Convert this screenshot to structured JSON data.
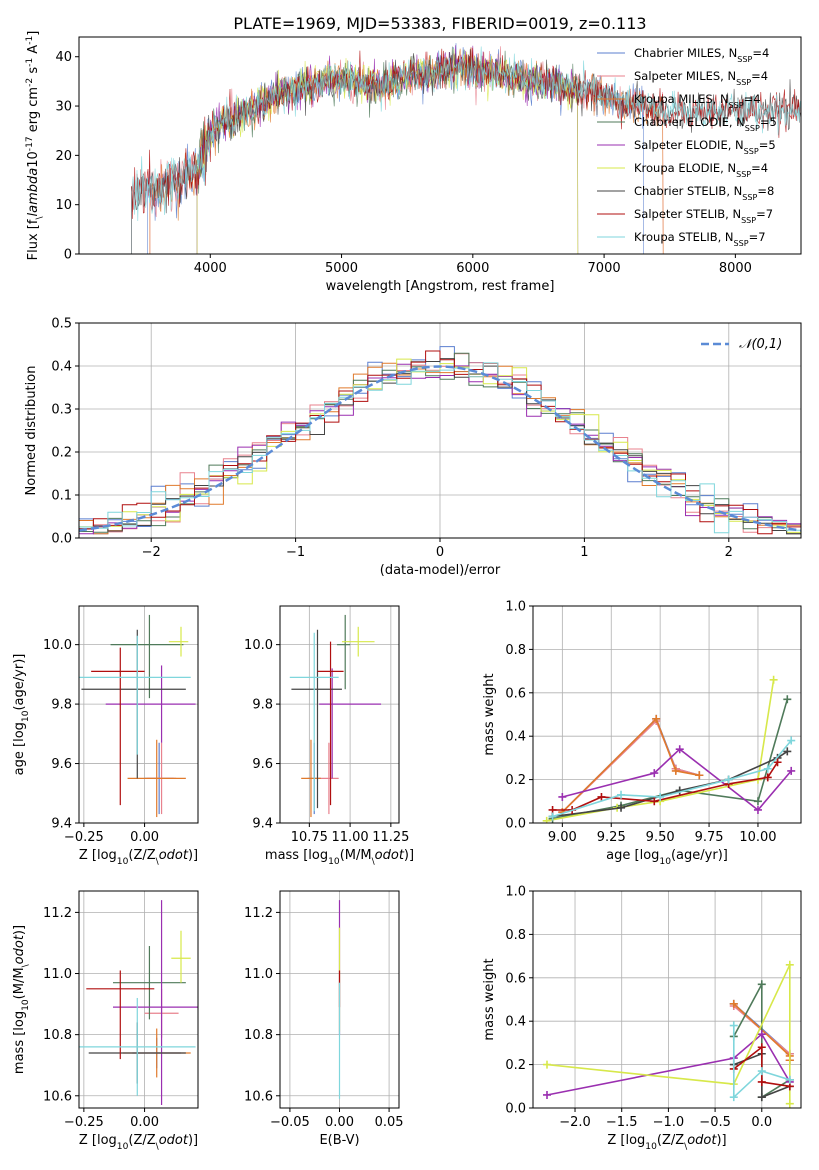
{
  "figure_title": "PLATE=1969, MJD=53383, FIBERID=0019, z=0.113",
  "colors": {
    "chabrier_miles": "#5b7fcf",
    "salpeter_miles": "#e8828e",
    "kroupa_miles": "#e07a2c",
    "chabrier_elodie": "#4f7a5a",
    "salpeter_elodie": "#9a2fb0",
    "kroupa_elodie": "#d7e84a",
    "chabrier_stelib": "#444444",
    "salpeter_stelib": "#b00f0f",
    "kroupa_stelib": "#7fd6dc",
    "normal_curve": "#5b8bd6",
    "grid": "#b0b0b0"
  },
  "chart_data": [
    {
      "id": "spectrum",
      "type": "line",
      "xlabel": "wavelength [Angstrom, rest frame]",
      "ylabel": "Flux [f$_\\lambda$10$^{-17}$ erg cm$^{-2}$ s$^{-1}$ A$^{-1}$]",
      "xlim": [
        3000,
        8500
      ],
      "ylim": [
        0,
        44
      ],
      "xticks": [
        4000,
        5000,
        6000,
        7000,
        8000
      ],
      "yticks": [
        0,
        10,
        20,
        30,
        40
      ],
      "grid": false,
      "legend_position": "top-right",
      "continuum": {
        "x": [
          3400,
          3600,
          3800,
          3900,
          4000,
          4100,
          4300,
          4500,
          4700,
          4900,
          5100,
          5300,
          5500,
          5700,
          5900,
          6100,
          6300,
          6500,
          6700,
          6900,
          7100,
          7300,
          7400
        ],
        "y": [
          12,
          13,
          16,
          17,
          24,
          27,
          29,
          32,
          34,
          35,
          35,
          34,
          36,
          37,
          38,
          37,
          36,
          35,
          34,
          33,
          31,
          30,
          29
        ]
      },
      "series": [
        {
          "name": "Chabrier MILES, N$_{SSP}$=4",
          "color_key": "chabrier_miles",
          "xrange": [
            3520,
            7300
          ]
        },
        {
          "name": "Salpeter MILES, N$_{SSP}$=4",
          "color_key": "salpeter_miles",
          "xrange": [
            3540,
            7450
          ]
        },
        {
          "name": "Kroupa MILES, N$_{SSP}$=4",
          "color_key": "kroupa_miles",
          "xrange": [
            3540,
            7450
          ]
        },
        {
          "name": "Chabrier ELODIE, N$_{SSP}$=5",
          "color_key": "chabrier_elodie",
          "xrange": [
            3900,
            6800
          ]
        },
        {
          "name": "Salpeter ELODIE, N$_{SSP}$=5",
          "color_key": "salpeter_elodie",
          "xrange": [
            3900,
            6800
          ]
        },
        {
          "name": "Kroupa ELODIE, N$_{SSP}$=4",
          "color_key": "kroupa_elodie",
          "xrange": [
            3900,
            6800
          ]
        },
        {
          "name": "Chabrier STELIB, N$_{SSP}$=8",
          "color_key": "chabrier_stelib",
          "xrange": [
            3400,
            8700
          ]
        },
        {
          "name": "Salpeter STELIB, N$_{SSP}$=7",
          "color_key": "salpeter_stelib",
          "xrange": [
            3400,
            8700
          ]
        },
        {
          "name": "Kroupa STELIB, N$_{SSP}$=7",
          "color_key": "kroupa_stelib",
          "xrange": [
            3400,
            8700
          ]
        }
      ]
    },
    {
      "id": "residuals",
      "type": "histogram",
      "xlabel": "(data-model)/error",
      "ylabel": "Normed distribution",
      "xlim": [
        -2.5,
        2.5
      ],
      "ylim": [
        0,
        0.5
      ],
      "xticks": [
        -2,
        -1,
        0,
        1,
        2
      ],
      "yticks": [
        0.0,
        0.1,
        0.2,
        0.3,
        0.4,
        0.5
      ],
      "grid": true,
      "legend_position": "top-right",
      "legend_label": "$\\mathcal{N}(0,1)$",
      "bin_width": 0.1
    },
    {
      "id": "age_vs_Z",
      "type": "errorbar",
      "xlabel": "Z [log$_{10}$(Z/Z$_\\odot$)]",
      "ylabel": "age  [log$_{10}$(age/yr)]",
      "xlim": [
        -0.27,
        0.22
      ],
      "ylim": [
        9.4,
        10.13
      ],
      "xticks": [
        -0.25,
        0.0
      ],
      "yticks": [
        9.4,
        9.6,
        9.8,
        10.0
      ],
      "grid": true,
      "points": [
        {
          "color_key": "chabrier_miles",
          "x": 0.06,
          "y": 9.55,
          "xerr": [
            0.06,
            0.06
          ],
          "yerr": [
            0.12,
            0.12
          ]
        },
        {
          "color_key": "salpeter_miles",
          "x": 0.07,
          "y": 9.55,
          "xerr": [
            0.06,
            0.06
          ],
          "yerr": [
            0.12,
            0.12
          ]
        },
        {
          "color_key": "kroupa_miles",
          "x": 0.05,
          "y": 9.55,
          "xerr": [
            0.12,
            0.12
          ],
          "yerr": [
            0.13,
            0.13
          ]
        },
        {
          "color_key": "chabrier_elodie",
          "x": 0.02,
          "y": 10.0,
          "xerr": [
            0.16,
            0.14
          ],
          "yerr": [
            0.18,
            0.1
          ]
        },
        {
          "color_key": "salpeter_elodie",
          "x": 0.07,
          "y": 9.8,
          "xerr": [
            0.23,
            0.14
          ],
          "yerr": [
            0.13,
            0.13
          ]
        },
        {
          "color_key": "kroupa_elodie",
          "x": 0.15,
          "y": 10.01,
          "xerr": [
            0.05,
            0.03
          ],
          "yerr": [
            0.05,
            0.05
          ]
        },
        {
          "color_key": "chabrier_stelib",
          "x": -0.03,
          "y": 9.85,
          "xerr": [
            0.23,
            0.2
          ],
          "yerr": [
            0.3,
            0.2
          ]
        },
        {
          "color_key": "salpeter_stelib",
          "x": -0.1,
          "y": 9.91,
          "xerr": [
            0.12,
            0.1
          ],
          "yerr": [
            0.45,
            0.08
          ]
        },
        {
          "color_key": "kroupa_stelib",
          "x": -0.03,
          "y": 9.89,
          "xerr": [
            0.25,
            0.22
          ],
          "yerr": [
            0.26,
            0.14
          ]
        }
      ]
    },
    {
      "id": "age_vs_mass",
      "type": "errorbar",
      "xlabel": "mass [log$_{10}$(M/M$_\\odot$)]",
      "ylabel": "",
      "xlim": [
        10.57,
        11.3
      ],
      "ylim": [
        9.4,
        10.13
      ],
      "xticks": [
        10.75,
        11.0,
        11.25
      ],
      "yticks": [
        9.4,
        9.6,
        9.8,
        10.0
      ],
      "grid": true,
      "points": [
        {
          "color_key": "chabrier_miles",
          "x": 10.78,
          "y": 9.55,
          "xerr": [
            0.04,
            0.04
          ],
          "yerr": [
            0.12,
            0.12
          ]
        },
        {
          "color_key": "salpeter_miles",
          "x": 10.87,
          "y": 9.55,
          "xerr": [
            0.06,
            0.06
          ],
          "yerr": [
            0.12,
            0.12
          ]
        },
        {
          "color_key": "kroupa_miles",
          "x": 10.76,
          "y": 9.55,
          "xerr": [
            0.06,
            0.06
          ],
          "yerr": [
            0.13,
            0.13
          ]
        },
        {
          "color_key": "chabrier_elodie",
          "x": 10.97,
          "y": 10.0,
          "xerr": [
            0.05,
            0.03
          ],
          "yerr": [
            0.15,
            0.1
          ]
        },
        {
          "color_key": "salpeter_elodie",
          "x": 10.89,
          "y": 9.8,
          "xerr": [
            0.08,
            0.3
          ],
          "yerr": [
            0.25,
            0.12
          ]
        },
        {
          "color_key": "kroupa_elodie",
          "x": 11.05,
          "y": 10.01,
          "xerr": [
            0.1,
            0.1
          ],
          "yerr": [
            0.05,
            0.05
          ]
        },
        {
          "color_key": "chabrier_stelib",
          "x": 10.8,
          "y": 9.85,
          "xerr": [
            0.16,
            0.15
          ],
          "yerr": [
            0.4,
            0.2
          ]
        },
        {
          "color_key": "salpeter_stelib",
          "x": 10.88,
          "y": 9.91,
          "xerr": [
            0.08,
            0.08
          ],
          "yerr": [
            0.45,
            0.1
          ]
        },
        {
          "color_key": "kroupa_stelib",
          "x": 10.78,
          "y": 9.89,
          "xerr": [
            0.15,
            0.15
          ],
          "yerr": [
            0.45,
            0.15
          ]
        }
      ]
    },
    {
      "id": "weight_vs_age",
      "type": "line",
      "xlabel": "age  [log$_{10}$(age/yr)]",
      "ylabel": "mass weight",
      "xlim": [
        8.85,
        10.22
      ],
      "ylim": [
        0,
        1
      ],
      "xticks": [
        9.0,
        9.25,
        9.5,
        9.75,
        10.0
      ],
      "yticks": [
        0.0,
        0.2,
        0.4,
        0.6,
        0.8,
        1.0
      ],
      "grid": true,
      "series": [
        {
          "color_key": "chabrier_miles",
          "x": [
            9.0,
            9.48,
            9.58,
            9.7
          ],
          "y": [
            0.05,
            0.48,
            0.25,
            0.22
          ]
        },
        {
          "color_key": "salpeter_miles",
          "x": [
            9.0,
            9.48,
            9.58,
            9.7
          ],
          "y": [
            0.05,
            0.47,
            0.25,
            0.22
          ]
        },
        {
          "color_key": "kroupa_miles",
          "x": [
            9.0,
            9.48,
            9.58,
            9.7
          ],
          "y": [
            0.05,
            0.48,
            0.24,
            0.22
          ]
        },
        {
          "color_key": "chabrier_elodie",
          "x": [
            8.95,
            9.3,
            9.6,
            10.0,
            10.15
          ],
          "y": [
            0.02,
            0.08,
            0.15,
            0.1,
            0.57
          ]
        },
        {
          "color_key": "salpeter_elodie",
          "x": [
            9.0,
            9.47,
            9.6,
            10.0,
            10.17
          ],
          "y": [
            0.12,
            0.23,
            0.34,
            0.06,
            0.24
          ]
        },
        {
          "color_key": "kroupa_elodie",
          "x": [
            8.92,
            9.28,
            9.5,
            10.0,
            10.08
          ],
          "y": [
            0.01,
            0.07,
            0.1,
            0.2,
            0.66
          ]
        },
        {
          "color_key": "chabrier_stelib",
          "x": [
            8.95,
            9.3,
            9.6,
            9.85,
            10.1,
            10.15
          ],
          "y": [
            0.03,
            0.07,
            0.15,
            0.2,
            0.3,
            0.33
          ]
        },
        {
          "color_key": "salpeter_stelib",
          "x": [
            8.95,
            9.05,
            9.2,
            9.47,
            9.85,
            10.05,
            10.1
          ],
          "y": [
            0.06,
            0.06,
            0.12,
            0.1,
            0.18,
            0.21,
            0.28
          ]
        },
        {
          "color_key": "kroupa_stelib",
          "x": [
            8.95,
            9.3,
            9.5,
            9.85,
            10.05,
            10.17
          ],
          "y": [
            0.03,
            0.13,
            0.12,
            0.2,
            0.25,
            0.38
          ]
        }
      ]
    },
    {
      "id": "mass_vs_Z",
      "type": "errorbar",
      "xlabel": "Z [log$_{10}$(Z/Z$_\\odot$)]",
      "ylabel": "mass [log$_{10}$(M/M$_\\odot$)]",
      "xlim": [
        -0.27,
        0.22
      ],
      "ylim": [
        10.56,
        11.27
      ],
      "xticks": [
        -0.25,
        0.0
      ],
      "yticks": [
        10.6,
        10.8,
        11.0,
        11.2
      ],
      "grid": true,
      "points": [
        {
          "color_key": "chabrier_miles",
          "x": 0.05,
          "y": 10.74,
          "xerr": [
            0.1,
            0.1
          ],
          "yerr": [
            0.05,
            0.05
          ]
        },
        {
          "color_key": "salpeter_miles",
          "x": 0.07,
          "y": 10.87,
          "xerr": [
            0.07,
            0.07
          ],
          "yerr": [
            0.08,
            0.08
          ]
        },
        {
          "color_key": "kroupa_miles",
          "x": 0.05,
          "y": 10.74,
          "xerr": [
            0.14,
            0.14
          ],
          "yerr": [
            0.08,
            0.08
          ]
        },
        {
          "color_key": "chabrier_elodie",
          "x": 0.02,
          "y": 10.97,
          "xerr": [
            0.15,
            0.15
          ],
          "yerr": [
            0.12,
            0.12
          ]
        },
        {
          "color_key": "salpeter_elodie",
          "x": 0.07,
          "y": 10.89,
          "xerr": [
            0.2,
            0.17
          ],
          "yerr": [
            0.32,
            0.35
          ]
        },
        {
          "color_key": "kroupa_elodie",
          "x": 0.15,
          "y": 11.05,
          "xerr": [
            0.04,
            0.04
          ],
          "yerr": [
            0.08,
            0.09
          ]
        },
        {
          "color_key": "chabrier_stelib",
          "x": -0.03,
          "y": 10.74,
          "xerr": [
            0.2,
            0.2
          ],
          "yerr": [
            0.1,
            0.1
          ]
        },
        {
          "color_key": "salpeter_stelib",
          "x": -0.1,
          "y": 10.95,
          "xerr": [
            0.14,
            0.14
          ],
          "yerr": [
            0.23,
            0.06
          ]
        },
        {
          "color_key": "kroupa_stelib",
          "x": -0.03,
          "y": 10.76,
          "xerr": [
            0.25,
            0.24
          ],
          "yerr": [
            0.16,
            0.16
          ]
        }
      ]
    },
    {
      "id": "mass_vs_ebv",
      "type": "errorbar",
      "xlabel": "E(B-V)",
      "ylabel": "",
      "xlim": [
        -0.06,
        0.06
      ],
      "ylim": [
        10.56,
        11.27
      ],
      "xticks": [
        -0.05,
        0.0,
        0.05
      ],
      "yticks": [
        10.6,
        10.8,
        11.0,
        11.2
      ],
      "grid": true,
      "points": [
        {
          "color_key": "salpeter_elodie",
          "x": 0.0,
          "y": 11.02,
          "xerr": [
            0,
            0
          ],
          "yerr": [
            0.22,
            0.22
          ]
        },
        {
          "color_key": "kroupa_elodie",
          "x": 0.0,
          "y": 10.98,
          "xerr": [
            0,
            0
          ],
          "yerr": [
            0.17,
            0.17
          ]
        },
        {
          "color_key": "salpeter_stelib",
          "x": 0.0,
          "y": 10.95,
          "xerr": [
            0,
            0
          ],
          "yerr": [
            0.06,
            0.06
          ]
        },
        {
          "color_key": "kroupa_stelib",
          "x": 0.0,
          "y": 10.78,
          "xerr": [
            0,
            0
          ],
          "yerr": [
            0.19,
            0.19
          ]
        }
      ]
    },
    {
      "id": "weight_vs_Z",
      "type": "line",
      "xlabel": "Z [log$_{10}$(Z/Z$_\\odot$)]",
      "ylabel": "mass weight",
      "xlim": [
        -2.45,
        0.42
      ],
      "ylim": [
        0,
        1
      ],
      "xticks": [
        -2.0,
        -1.5,
        -1.0,
        -0.5,
        0.0
      ],
      "yticks": [
        0.0,
        0.2,
        0.4,
        0.6,
        0.8,
        1.0
      ],
      "grid": true,
      "series": [
        {
          "color_key": "chabrier_miles",
          "x": [
            -0.3,
            0.3,
            0.3
          ],
          "y": [
            0.48,
            0.25,
            0.22
          ]
        },
        {
          "color_key": "salpeter_miles",
          "x": [
            -0.3,
            0.3,
            0.3
          ],
          "y": [
            0.47,
            0.25,
            0.22
          ]
        },
        {
          "color_key": "kroupa_miles",
          "x": [
            -0.3,
            0.3,
            0.3
          ],
          "y": [
            0.48,
            0.24,
            0.22
          ]
        },
        {
          "color_key": "chabrier_elodie",
          "x": [
            -0.3,
            0.0,
            0.0,
            0.3
          ],
          "y": [
            0.33,
            0.57,
            0.05,
            0.13
          ]
        },
        {
          "color_key": "salpeter_elodie",
          "x": [
            -2.3,
            -0.3,
            0.0,
            0.3
          ],
          "y": [
            0.06,
            0.23,
            0.34,
            0.12
          ]
        },
        {
          "color_key": "kroupa_elodie",
          "x": [
            -2.3,
            -0.3,
            0.3,
            0.3
          ],
          "y": [
            0.2,
            0.11,
            0.66,
            0.02
          ]
        },
        {
          "color_key": "chabrier_stelib",
          "x": [
            -0.3,
            0.0,
            0.0,
            0.3
          ],
          "y": [
            0.2,
            0.25,
            0.05,
            0.1
          ]
        },
        {
          "color_key": "salpeter_stelib",
          "x": [
            -0.3,
            0.0,
            0.0,
            0.3
          ],
          "y": [
            0.18,
            0.28,
            0.12,
            0.1
          ]
        },
        {
          "color_key": "kroupa_stelib",
          "x": [
            -0.3,
            -0.3,
            0.0,
            0.3
          ],
          "y": [
            0.38,
            0.05,
            0.17,
            0.13
          ]
        }
      ]
    }
  ]
}
